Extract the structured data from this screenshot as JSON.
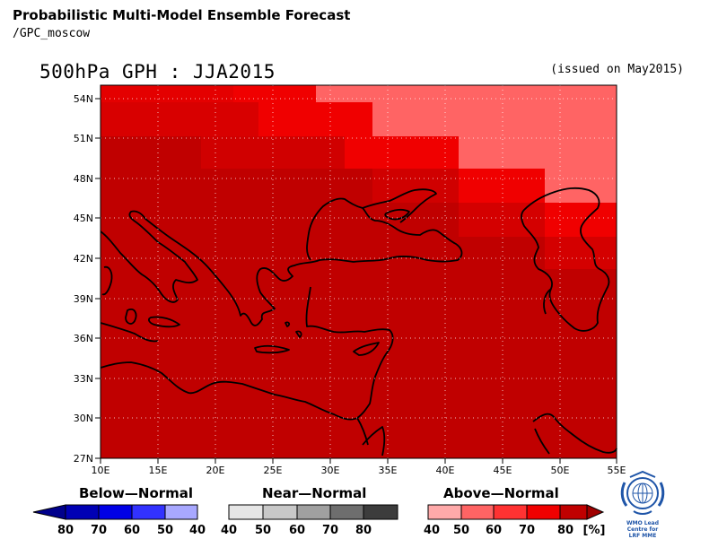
{
  "header": {
    "title": "Probabilistic Multi-Model Ensemble Forecast",
    "subtitle": "/GPC_moscow",
    "plot_title": "500hPa GPH : JJA2015",
    "issued": "(issued on May2015)"
  },
  "map": {
    "lat_labels": [
      "54N",
      "51N",
      "48N",
      "45N",
      "42N",
      "39N",
      "36N",
      "33N",
      "30N",
      "27N"
    ],
    "lon_labels": [
      "10E",
      "15E",
      "20E",
      "25E",
      "30E",
      "35E",
      "40E",
      "45E",
      "50E",
      "55E"
    ],
    "colors": {
      "above_40": "#ffaaaa",
      "above_50": "#ff6464",
      "above_60": "#ff3232",
      "above_70": "#f00000",
      "above_80": "#c00000",
      "near_40": "#e6e6e6",
      "near_50": "#c8c8c8",
      "near_60": "#a0a0a0",
      "near_70": "#6e6e6e",
      "near_80": "#3c3c3c",
      "below_40": "#a8a8ff",
      "below_50": "#6e6eff",
      "below_60": "#3232ff",
      "below_70": "#0000e6",
      "below_80": "#0000b4"
    }
  },
  "legend": {
    "below": {
      "title": "Below—Normal",
      "labels": [
        "80",
        "70",
        "60",
        "50",
        "40"
      ]
    },
    "near": {
      "title": "Near—Normal",
      "labels": [
        "40",
        "50",
        "60",
        "70",
        "80"
      ]
    },
    "above": {
      "title": "Above—Normal",
      "labels": [
        "40",
        "50",
        "60",
        "70",
        "80"
      ]
    },
    "unit": "[%]"
  },
  "logo": {
    "line1": "WMO Lead Centre for",
    "line2": "LRF MME"
  }
}
